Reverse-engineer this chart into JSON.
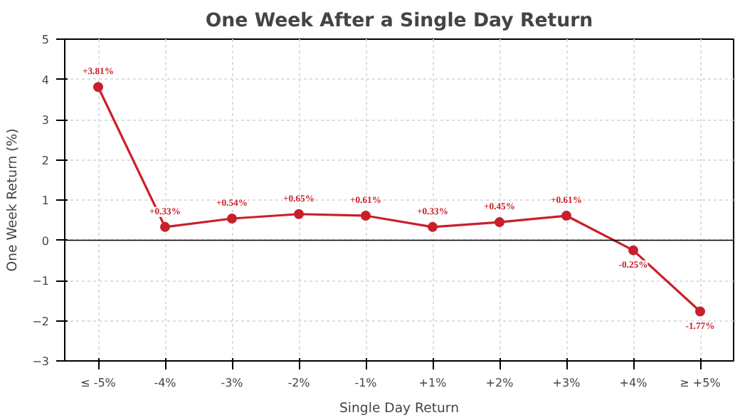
{
  "chart_data": {
    "type": "line",
    "title": "One Week After a Single Day Return",
    "xlabel": "Single Day Return",
    "ylabel": "One Week Return (%)",
    "categories": [
      "≤ -5%",
      "-4%",
      "-3%",
      "-2%",
      "-1%",
      "+1%",
      "+2%",
      "+3%",
      "+4%",
      "≥ +5%"
    ],
    "series": [
      {
        "color": "#c8202a",
        "values": [
          3.81,
          0.33,
          0.54,
          0.65,
          0.61,
          0.33,
          0.45,
          0.61,
          -0.25,
          -1.77
        ],
        "value_labels": [
          "+3.81%",
          "+0.33%",
          "+0.54%",
          "+0.65%",
          "+0.61%",
          "+0.33%",
          "+0.45%",
          "+0.61%",
          "-0.25%",
          "-1.77%"
        ]
      }
    ],
    "ylim": [
      -3,
      5
    ],
    "yticks": [
      -3,
      -2,
      -1,
      0,
      1,
      2,
      3,
      4,
      5
    ],
    "grid": true,
    "marker": "circle",
    "line_style": "solid",
    "ref_lines": [
      {
        "axis": "y",
        "value": 0,
        "color": "#000000"
      }
    ]
  }
}
